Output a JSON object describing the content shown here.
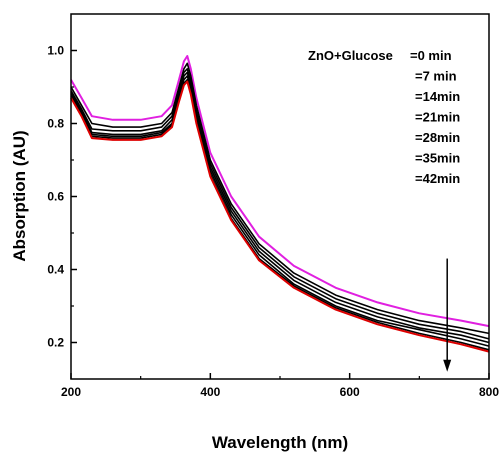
{
  "chart_data": {
    "type": "line",
    "xlabel": "Wavelength (nm)",
    "ylabel": "Absorption (AU)",
    "xlim": [
      200,
      800
    ],
    "ylim": [
      0.1,
      1.1
    ],
    "x_ticks": [
      200,
      400,
      600,
      800
    ],
    "y_ticks": [
      0.2,
      0.4,
      0.6,
      0.8,
      1.0
    ],
    "x_tick_labels": [
      "200",
      "400",
      "600",
      "800"
    ],
    "y_tick_labels": [
      "0.2",
      "0.4",
      "0.6",
      "0.8",
      "1.0"
    ],
    "grid": false,
    "legend": {
      "position": "top-right",
      "title": "ZnO+Glucose",
      "entries": [
        "=0 min",
        "=7 min",
        "=14min",
        "=21min",
        "=28min",
        "=35min",
        "=42min"
      ]
    },
    "annotation": {
      "type": "arrow",
      "direction": "down",
      "x": 740,
      "y_from": 0.43,
      "y_to": 0.12
    },
    "x": [
      200,
      215,
      230,
      260,
      300,
      330,
      345,
      355,
      362,
      367,
      372,
      380,
      400,
      430,
      470,
      520,
      580,
      640,
      700,
      760,
      800
    ],
    "series": [
      {
        "values": [
          0.92,
          0.87,
          0.82,
          0.81,
          0.81,
          0.82,
          0.85,
          0.92,
          0.97,
          0.985,
          0.95,
          0.87,
          0.72,
          0.6,
          0.49,
          0.41,
          0.35,
          0.31,
          0.28,
          0.26,
          0.245
        ],
        "color": "#e020e0"
      },
      {
        "values": [
          0.9,
          0.85,
          0.8,
          0.79,
          0.79,
          0.8,
          0.83,
          0.9,
          0.95,
          0.965,
          0.93,
          0.85,
          0.7,
          0.58,
          0.47,
          0.39,
          0.33,
          0.29,
          0.26,
          0.24,
          0.225
        ],
        "color": "#000000"
      },
      {
        "values": [
          0.89,
          0.84,
          0.785,
          0.78,
          0.78,
          0.79,
          0.82,
          0.89,
          0.94,
          0.95,
          0.915,
          0.835,
          0.69,
          0.57,
          0.46,
          0.38,
          0.32,
          0.28,
          0.25,
          0.23,
          0.21
        ],
        "color": "#000000"
      },
      {
        "values": [
          0.885,
          0.835,
          0.775,
          0.77,
          0.77,
          0.78,
          0.81,
          0.88,
          0.93,
          0.94,
          0.905,
          0.825,
          0.68,
          0.56,
          0.45,
          0.37,
          0.31,
          0.27,
          0.24,
          0.22,
          0.2
        ],
        "color": "#000000"
      },
      {
        "values": [
          0.88,
          0.83,
          0.77,
          0.765,
          0.765,
          0.775,
          0.8,
          0.87,
          0.92,
          0.93,
          0.895,
          0.815,
          0.67,
          0.55,
          0.44,
          0.36,
          0.3,
          0.26,
          0.235,
          0.21,
          0.19
        ],
        "color": "#000000"
      },
      {
        "values": [
          0.875,
          0.825,
          0.765,
          0.76,
          0.76,
          0.77,
          0.795,
          0.865,
          0.91,
          0.92,
          0.885,
          0.805,
          0.66,
          0.54,
          0.43,
          0.355,
          0.295,
          0.255,
          0.225,
          0.2,
          0.18
        ],
        "color": "#000000"
      },
      {
        "values": [
          0.87,
          0.82,
          0.76,
          0.755,
          0.755,
          0.765,
          0.79,
          0.86,
          0.905,
          0.915,
          0.88,
          0.8,
          0.655,
          0.535,
          0.425,
          0.35,
          0.29,
          0.25,
          0.22,
          0.195,
          0.175
        ],
        "color": "#dd0000"
      }
    ]
  }
}
